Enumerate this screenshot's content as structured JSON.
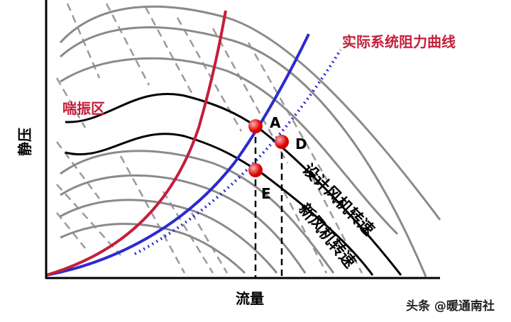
{
  "axes": {
    "y_label": "静压",
    "x_label": "流量"
  },
  "annotations": {
    "surge_zone": "喘振区",
    "system_curve": "实际系统阻力曲线",
    "design_speed": "设计风机转速",
    "new_speed": "新风机转速"
  },
  "points": {
    "a": "A",
    "d": "D",
    "e": "E"
  },
  "watermark": "头条 @暖通南社"
}
